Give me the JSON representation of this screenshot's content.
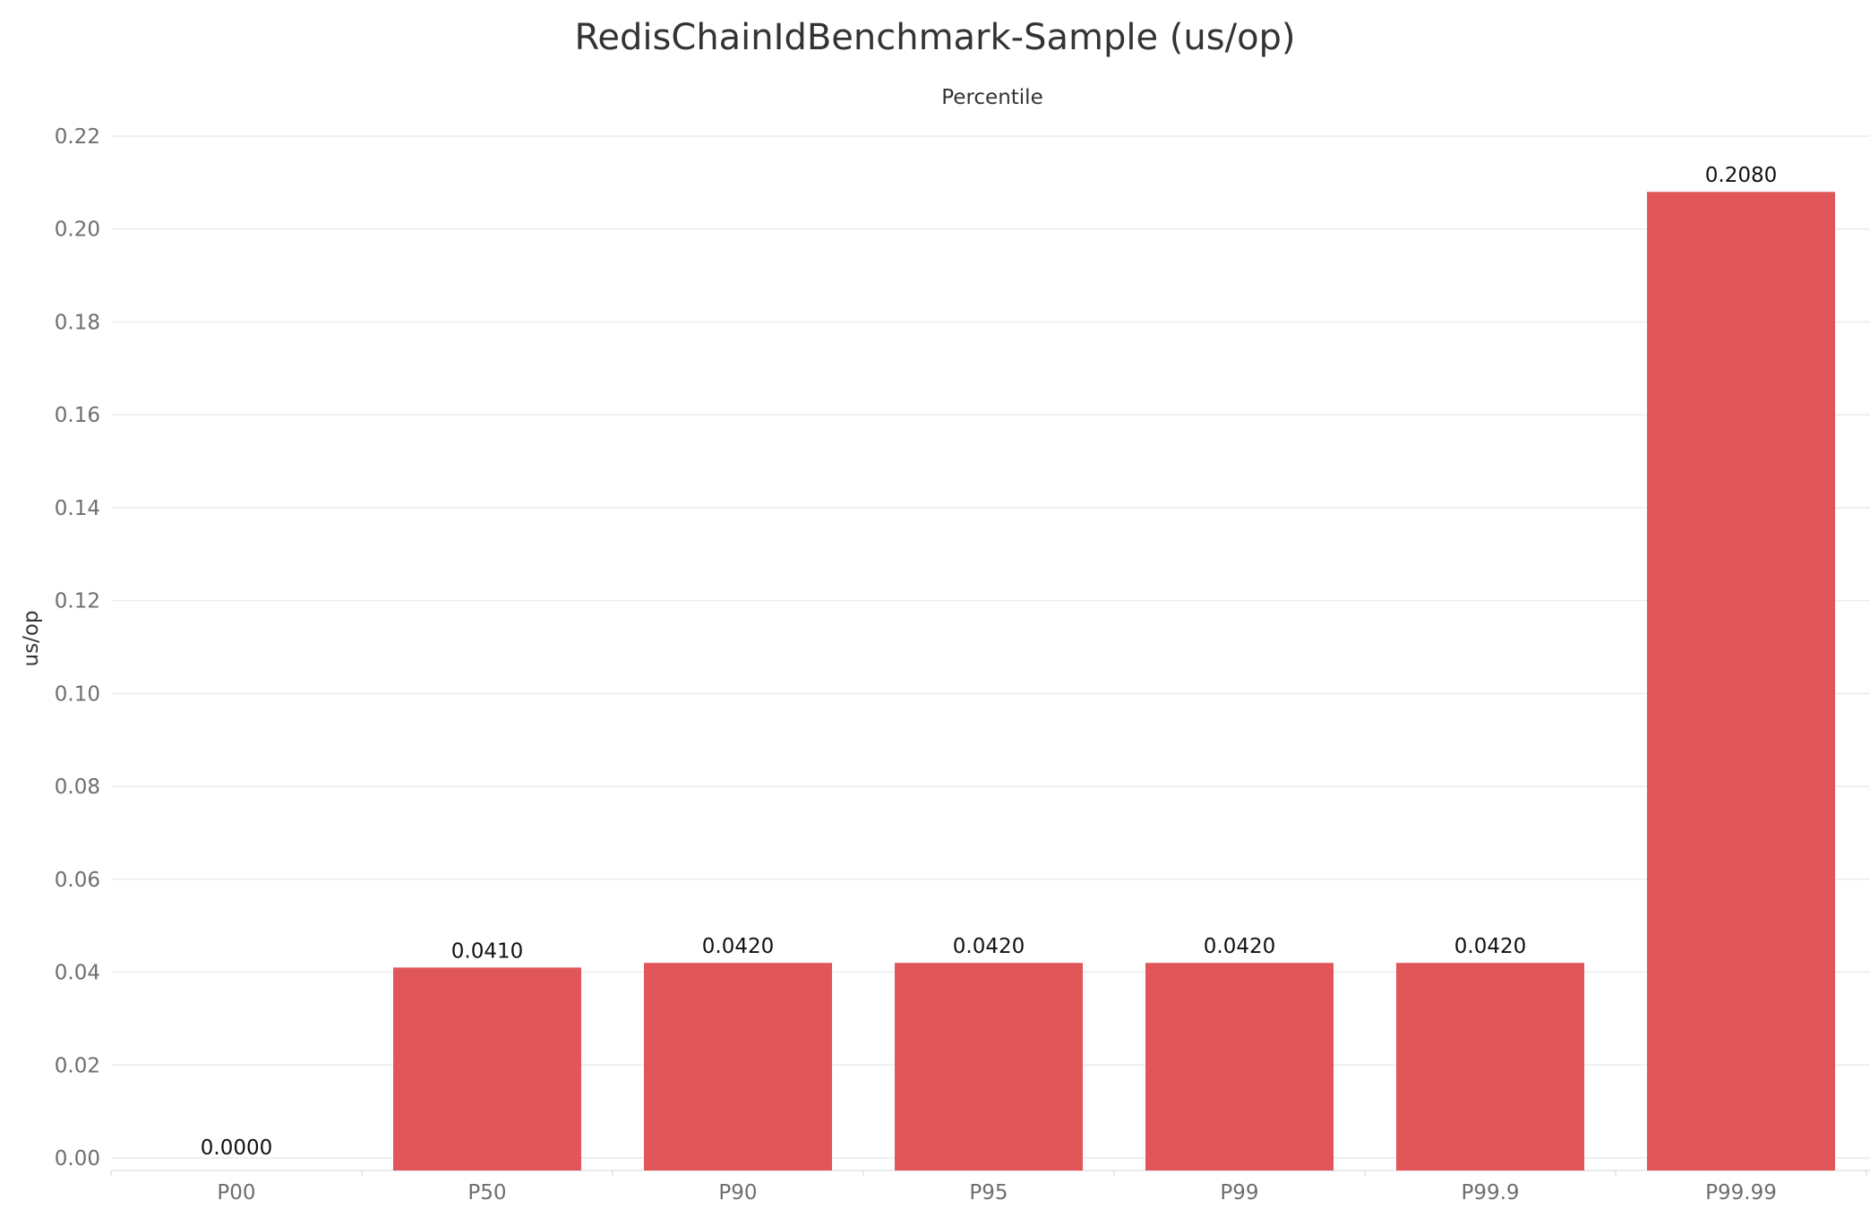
{
  "chart_data": {
    "type": "bar",
    "title": "RedisChainIdBenchmark-Sample (us/op)",
    "x_header": "Percentile",
    "ylabel": "us/op",
    "categories": [
      "P00",
      "P50",
      "P90",
      "P95",
      "P99",
      "P99.9",
      "P99.99"
    ],
    "values": [
      0.0,
      0.041,
      0.042,
      0.042,
      0.042,
      0.042,
      0.208
    ],
    "value_labels": [
      "0.0000",
      "0.0410",
      "0.0420",
      "0.0420",
      "0.0420",
      "0.0420",
      "0.2080"
    ],
    "ylim": [
      0,
      0.22
    ],
    "yticks": [
      0.0,
      0.02,
      0.04,
      0.06,
      0.08,
      0.1,
      0.12,
      0.14,
      0.16,
      0.18,
      0.2,
      0.22
    ],
    "ytick_labels": [
      "0.00",
      "0.02",
      "0.04",
      "0.06",
      "0.08",
      "0.10",
      "0.12",
      "0.14",
      "0.16",
      "0.18",
      "0.20",
      "0.22"
    ],
    "grid": true,
    "legend": "none",
    "bar_color": "#e15759"
  }
}
